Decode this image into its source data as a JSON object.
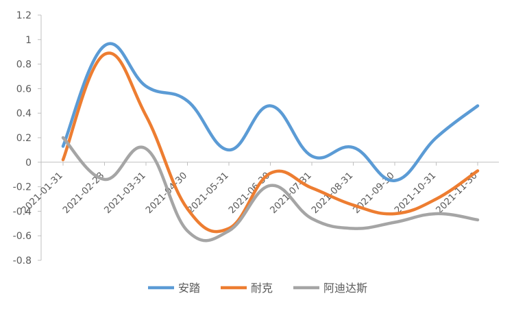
{
  "chart_data": {
    "type": "line",
    "title": "",
    "xlabel": "",
    "ylabel": "",
    "ylim": [
      -0.8,
      1.2
    ],
    "y_ticks": [
      1.2,
      1,
      0.8,
      0.6,
      0.4,
      0.2,
      0,
      -0.2,
      -0.4,
      -0.6,
      -0.8
    ],
    "x_tick_labels": [
      "2021-01-31",
      "2021-02-28",
      "2021-03-31",
      "2021-04-30",
      "2021-05-31",
      "2021-06-30",
      "2021-07-31",
      "2021-08-31",
      "2021-09-30",
      "2021-10-31",
      "2021-11-30"
    ],
    "grid": false,
    "legend_position": "bottom",
    "series": [
      {
        "name": "安踏",
        "color": "#5B9BD5",
        "values": [
          0.13,
          0.95,
          0.62,
          0.5,
          0.1,
          0.46,
          0.05,
          0.12,
          -0.15,
          0.2,
          0.46
        ]
      },
      {
        "name": "耐克",
        "color": "#ED7D31",
        "values": [
          0.02,
          0.88,
          0.38,
          -0.38,
          -0.54,
          -0.09,
          -0.21,
          -0.35,
          -0.42,
          -0.3,
          -0.07
        ]
      },
      {
        "name": "阿迪达斯",
        "color": "#A5A5A5",
        "values": [
          0.2,
          -0.14,
          0.11,
          -0.56,
          -0.56,
          -0.19,
          -0.46,
          -0.54,
          -0.49,
          -0.42,
          -0.47
        ]
      }
    ]
  }
}
